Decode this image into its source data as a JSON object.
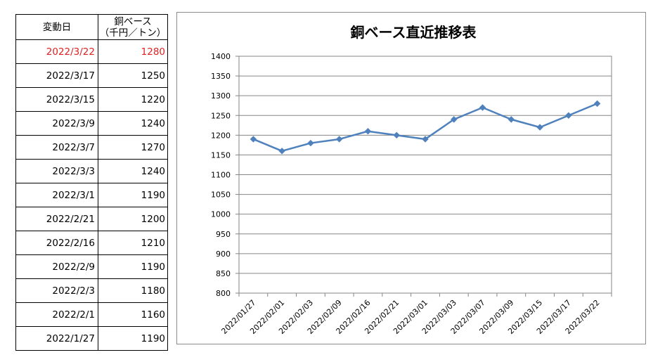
{
  "table": {
    "header": {
      "date_label": "変動日",
      "price_label_line1": "銅ベース",
      "price_label_line2": "（千円／トン）"
    },
    "rows": [
      {
        "date": "2022/3/22",
        "price": "1280",
        "highlight": true
      },
      {
        "date": "2022/3/17",
        "price": "1250"
      },
      {
        "date": "2022/3/15",
        "price": "1220"
      },
      {
        "date": "2022/3/9",
        "price": "1240"
      },
      {
        "date": "2022/3/7",
        "price": "1270"
      },
      {
        "date": "2022/3/3",
        "price": "1240"
      },
      {
        "date": "2022/3/1",
        "price": "1190"
      },
      {
        "date": "2022/2/21",
        "price": "1200"
      },
      {
        "date": "2022/2/16",
        "price": "1210"
      },
      {
        "date": "2022/2/9",
        "price": "1190"
      },
      {
        "date": "2022/2/3",
        "price": "1180"
      },
      {
        "date": "2022/2/1",
        "price": "1160"
      },
      {
        "date": "2022/1/27",
        "price": "1190"
      }
    ],
    "highlight_color": "#e02020"
  },
  "chart_data": {
    "type": "line",
    "title": "銅ベース直近推移表",
    "categories": [
      "2022/01/27",
      "2022/02/01",
      "2022/02/03",
      "2022/02/09",
      "2022/02/16",
      "2022/02/21",
      "2022/03/01",
      "2022/03/03",
      "2022/03/07",
      "2022/03/09",
      "2022/03/15",
      "2022/03/17",
      "2022/03/22"
    ],
    "series": [
      {
        "values": [
          1190,
          1160,
          1180,
          1190,
          1210,
          1200,
          1190,
          1240,
          1270,
          1240,
          1220,
          1250,
          1280
        ],
        "color": "#4f81bd",
        "marker": "diamond"
      }
    ],
    "ylim": [
      800,
      1400
    ],
    "yticks": [
      800,
      850,
      900,
      950,
      1000,
      1050,
      1100,
      1150,
      1200,
      1250,
      1300,
      1350,
      1400
    ],
    "grid": true,
    "legend": false,
    "xlabel": "",
    "ylabel": ""
  }
}
